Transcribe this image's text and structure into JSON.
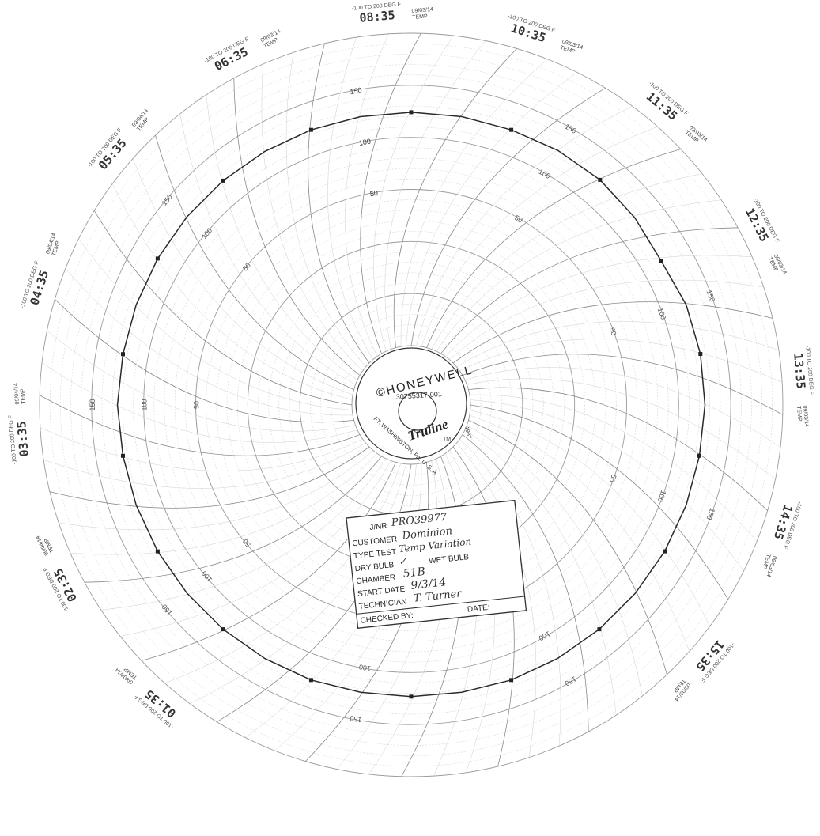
{
  "chart_data": {
    "type": "line",
    "chart_kind": "circular recorder chart",
    "range_label": "-100 TO 200 DEG F",
    "temp_label": "TEMP",
    "ring_labels": [
      "50",
      "100",
      "150",
      "50",
      "100",
      "150"
    ],
    "time_labels": [
      {
        "time": "01:35",
        "date": "09/04/14"
      },
      {
        "time": "02:35",
        "date": "09/04/14"
      },
      {
        "time": "03:35",
        "date": "09/04/14"
      },
      {
        "time": "04:35",
        "date": "09/04/14"
      },
      {
        "time": "05:35",
        "date": "09/04/14"
      },
      {
        "time": "06:35",
        "date": "09/03/14"
      },
      {
        "time": "08:35",
        "date": "09/03/14"
      },
      {
        "time": "10:35",
        "date": "09/03/14"
      },
      {
        "time": "11:35",
        "date": "09/03/14"
      },
      {
        "time": "12:35",
        "date": "09/03/14"
      },
      {
        "time": "13:35",
        "date": "09/03/14"
      },
      {
        "time": "14:35",
        "date": "09/03/14"
      },
      {
        "time": "15:35",
        "date": "09/03/14"
      }
    ],
    "series": [
      {
        "values": [
          71,
          71,
          71,
          72,
          72,
          70,
          67,
          71,
          72,
          72,
          71,
          71,
          71,
          71,
          71,
          71,
          71,
          70,
          70,
          70,
          71,
          71,
          71,
          71,
          71,
          71,
          71,
          72,
          71,
          71,
          71,
          71,
          71,
          71,
          71,
          71
        ]
      }
    ]
  },
  "hub": {
    "brand": "©HONEYWELL",
    "part_number": "30755317-001",
    "year": "1987",
    "location": "FT. WASHINGTON, PA. U. S. A.",
    "product": "Truline",
    "tm": "TM"
  },
  "label_box": {
    "jnr_label": "J/NR",
    "jnr_value": "PRO39977",
    "customer_label": "CUSTOMER",
    "customer_value": "Dominion",
    "type_test_label": "TYPE TEST",
    "type_test_value": "Temp Variation",
    "dry_bulb_label": "DRY BULB",
    "dry_bulb_value": "✓",
    "wet_bulb_label": "WET BULB",
    "chamber_label": "CHAMBER",
    "chamber_value": "51B",
    "start_date_label": "START DATE",
    "start_date_value": "9/3/14",
    "technician_label": "TECHNICIAN",
    "technician_value": "T. Turner",
    "checked_by_label": "CHECKED BY:",
    "date_label": "DATE:"
  }
}
